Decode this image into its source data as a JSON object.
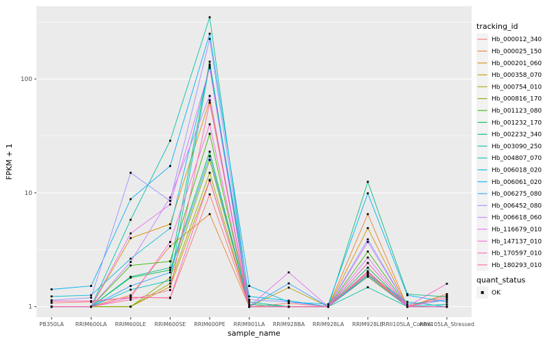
{
  "figure": {
    "background": "#FFFFFF",
    "panel_background": "#EBEBEB",
    "grid_color": "#FFFFFF",
    "tick_color": "#333333",
    "tick_label_color": "#4D4D4D",
    "axis_title_color": "#000000",
    "point_color": "#000000",
    "legend_key_background": "#F2F2F2",
    "point_shape": "square"
  },
  "chart_data": {
    "type": "line",
    "title": "",
    "xlabel": "sample_name",
    "ylabel": "FPKM + 1",
    "y_scale": "log10",
    "y_ticks": [
      1,
      10,
      100
    ],
    "y_minor_breaks": [
      3.1623,
      31.623,
      316.23
    ],
    "ylim": [
      0.85,
      437
    ],
    "grid": "white major+minor on gray panel",
    "legend_position": "right",
    "legend_title": "tracking_id",
    "legend2_title": "quant_status",
    "legend2_entries": [
      "OK"
    ],
    "categories": [
      "PB350LA",
      "RRIM600LA",
      "RRIM600LE",
      "RRIM600SE",
      "RRIM600PE",
      "RRIM901LA",
      "RRIM928BA",
      "RRIM928LA",
      "RRIM928LE",
      "RRII105LA_Control",
      "RRII105LA_Stressed"
    ],
    "series": [
      {
        "name": "Hb_000012_340",
        "color": "#F8766D",
        "values": [
          1.08,
          1.1,
          1.21,
          1.19,
          9.7,
          1.0,
          1.07,
          1.0,
          1.95,
          1.0,
          1.25
        ]
      },
      {
        "name": "Hb_000025_150",
        "color": "#EA8331",
        "values": [
          1.0,
          1.0,
          1.26,
          3.4,
          6.5,
          1.0,
          1.0,
          1.0,
          6.5,
          1.0,
          1.29
        ]
      },
      {
        "name": "Hb_000201_060",
        "color": "#D89000",
        "values": [
          1.0,
          1.0,
          4.0,
          5.3,
          65,
          1.0,
          1.0,
          1.0,
          4.9,
          1.0,
          1.0
        ]
      },
      {
        "name": "Hb_000358_070",
        "color": "#C09B00",
        "values": [
          1.0,
          1.0,
          1.0,
          1.5,
          13,
          1.0,
          1.47,
          1.0,
          1.9,
          1.0,
          1.0
        ]
      },
      {
        "name": "Hb_000754_010",
        "color": "#A3A500",
        "values": [
          1.0,
          1.0,
          1.0,
          1.6,
          15,
          1.0,
          1.0,
          1.0,
          1.83,
          1.0,
          1.0
        ]
      },
      {
        "name": "Hb_000816_170",
        "color": "#7CAE00",
        "values": [
          1.0,
          1.0,
          1.0,
          1.8,
          19.5,
          1.0,
          1.0,
          1.0,
          2.42,
          1.0,
          1.0
        ]
      },
      {
        "name": "Hb_001123_080",
        "color": "#39B600",
        "values": [
          1.0,
          1.0,
          2.3,
          2.5,
          33,
          1.0,
          1.0,
          1.0,
          3.05,
          1.0,
          1.0
        ]
      },
      {
        "name": "Hb_001232_170",
        "color": "#00BB4E",
        "values": [
          1.0,
          1.0,
          1.8,
          2.1,
          23,
          1.0,
          1.0,
          1.0,
          2.2,
          1.0,
          1.0
        ]
      },
      {
        "name": "Hb_002232_340",
        "color": "#00BF7D",
        "values": [
          1.0,
          1.0,
          1.83,
          2.2,
          142,
          1.05,
          1.0,
          1.0,
          12.5,
          1.29,
          1.22
        ]
      },
      {
        "name": "Hb_003090_250",
        "color": "#00C1A3",
        "values": [
          1.0,
          1.0,
          5.8,
          28.7,
          349,
          1.1,
          1.0,
          1.0,
          1.48,
          1.0,
          1.05
        ]
      },
      {
        "name": "Hb_004807_070",
        "color": "#00BFC4",
        "values": [
          1.0,
          1.0,
          1.41,
          1.7,
          134,
          1.0,
          1.0,
          1.0,
          1.9,
          1.1,
          1.0
        ]
      },
      {
        "name": "Hb_006018_020",
        "color": "#00BAE0",
        "values": [
          1.23,
          1.26,
          2.64,
          4.9,
          130,
          1.23,
          1.13,
          1.0,
          2.0,
          1.05,
          1.15
        ]
      },
      {
        "name": "Hb_006061_020",
        "color": "#00B0F6",
        "values": [
          1.42,
          1.52,
          8.8,
          17.2,
          250,
          1.52,
          1.1,
          1.05,
          9.9,
          1.26,
          1.1
        ]
      },
      {
        "name": "Hb_006275_080",
        "color": "#35A2FF",
        "values": [
          1.0,
          1.0,
          1.52,
          2.0,
          21,
          1.0,
          1.6,
          1.0,
          1.85,
          1.0,
          1.0
        ]
      },
      {
        "name": "Hb_006452_080",
        "color": "#9590FF",
        "values": [
          1.14,
          1.2,
          15.0,
          8.5,
          225,
          1.15,
          1.1,
          1.0,
          3.9,
          1.0,
          1.15
        ]
      },
      {
        "name": "Hb_006618_060",
        "color": "#C77CFF",
        "values": [
          1.0,
          1.0,
          2.47,
          9.1,
          71,
          1.0,
          1.0,
          1.0,
          3.7,
          1.0,
          1.0
        ]
      },
      {
        "name": "Hb_116679_010",
        "color": "#E76BF3",
        "values": [
          1.0,
          1.0,
          4.4,
          7.9,
          125,
          1.0,
          2.0,
          1.0,
          2.7,
          1.0,
          1.0
        ]
      },
      {
        "name": "Hb_147137_010",
        "color": "#FA62DB",
        "values": [
          1.0,
          1.0,
          1.2,
          3.7,
          40,
          1.0,
          1.0,
          1.0,
          2.42,
          1.0,
          1.59
        ]
      },
      {
        "name": "Hb_170597_010",
        "color": "#FF62BC",
        "values": [
          1.12,
          1.12,
          1.2,
          1.2,
          12.8,
          1.0,
          1.0,
          1.0,
          2.05,
          1.0,
          1.0
        ]
      },
      {
        "name": "Hb_180293_010",
        "color": "#FF6A98",
        "values": [
          1.0,
          1.0,
          1.15,
          1.4,
          62,
          1.0,
          1.0,
          1.0,
          2.0,
          1.0,
          1.2
        ]
      }
    ]
  }
}
